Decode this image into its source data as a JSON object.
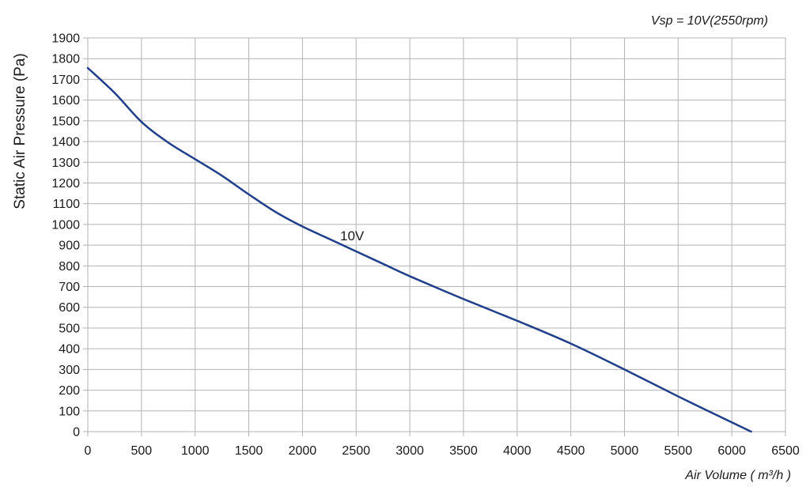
{
  "chart_data": {
    "type": "line",
    "title": "",
    "annotation": "Vsp = 10V(2550rpm)",
    "xlabel": "Air Volume ( m³/h )",
    "ylabel": "Static Air Pressure  (Pa)",
    "xlim": [
      0,
      6500
    ],
    "ylim": [
      0,
      1900
    ],
    "xticks": [
      0,
      500,
      1000,
      1500,
      2000,
      2500,
      3000,
      3500,
      4000,
      4500,
      5000,
      5500,
      6000,
      6500
    ],
    "yticks": [
      0,
      100,
      200,
      300,
      400,
      500,
      600,
      700,
      800,
      900,
      1000,
      1100,
      1200,
      1300,
      1400,
      1500,
      1600,
      1700,
      1800,
      1900
    ],
    "grid": true,
    "line_color": "#1f3f8a",
    "series": [
      {
        "name": "10V",
        "x": [
          0,
          250,
          500,
          750,
          1000,
          1250,
          1500,
          1750,
          2000,
          2250,
          2500,
          2750,
          3000,
          3500,
          4000,
          4500,
          5000,
          5500,
          6000,
          6180
        ],
        "y": [
          1755,
          1635,
          1495,
          1395,
          1315,
          1235,
          1145,
          1060,
          990,
          930,
          870,
          810,
          750,
          640,
          535,
          425,
          300,
          170,
          45,
          0
        ]
      }
    ]
  }
}
